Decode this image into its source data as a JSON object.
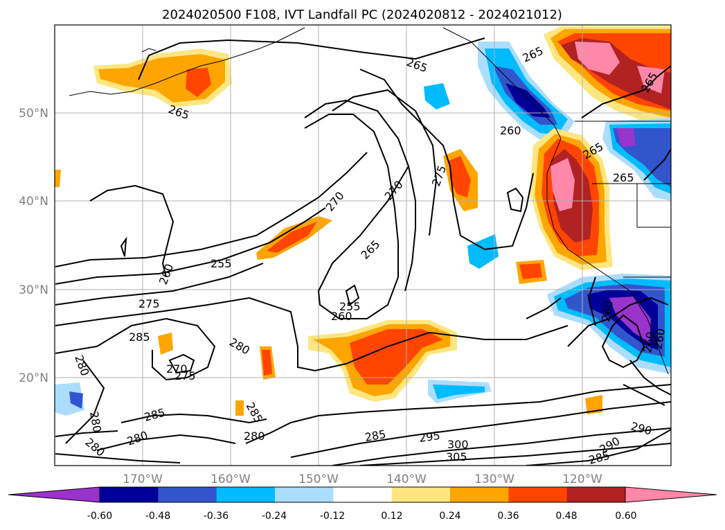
{
  "title": "2024020500 F108, IVT Landfall PC (2024020812 - 2024021012)",
  "map": {
    "lon_labels": [
      "170°W",
      "160°W",
      "150°W",
      "140°W",
      "130°W",
      "120°W"
    ],
    "lat_labels": [
      "50°N",
      "40°N",
      "30°N",
      "20°N"
    ],
    "gridlines": true,
    "contour_labels": [
      "265",
      "265",
      "260",
      "265",
      "265",
      "265",
      "265",
      "270",
      "270",
      "275",
      "255",
      "260",
      "265",
      "255",
      "260",
      "275",
      "285",
      "280",
      "280",
      "270",
      "275",
      "285",
      "280",
      "280",
      "285",
      "280",
      "280",
      "285",
      "295",
      "300",
      "305",
      "290",
      "290",
      "285",
      "260",
      "260",
      "260"
    ]
  },
  "colorbar": {
    "colors": [
      "#9933cc",
      "#000099",
      "#3355cc",
      "#00bbff",
      "#aaddff",
      "#ffffff",
      "#ffe680",
      "#ffa500",
      "#ff4500",
      "#b22222",
      "#ff88aa"
    ],
    "tick_labels": [
      "-0.60",
      "-0.48",
      "-0.36",
      "-0.24",
      "-0.12",
      "0.12",
      "0.24",
      "0.36",
      "0.48",
      "0.60"
    ]
  }
}
